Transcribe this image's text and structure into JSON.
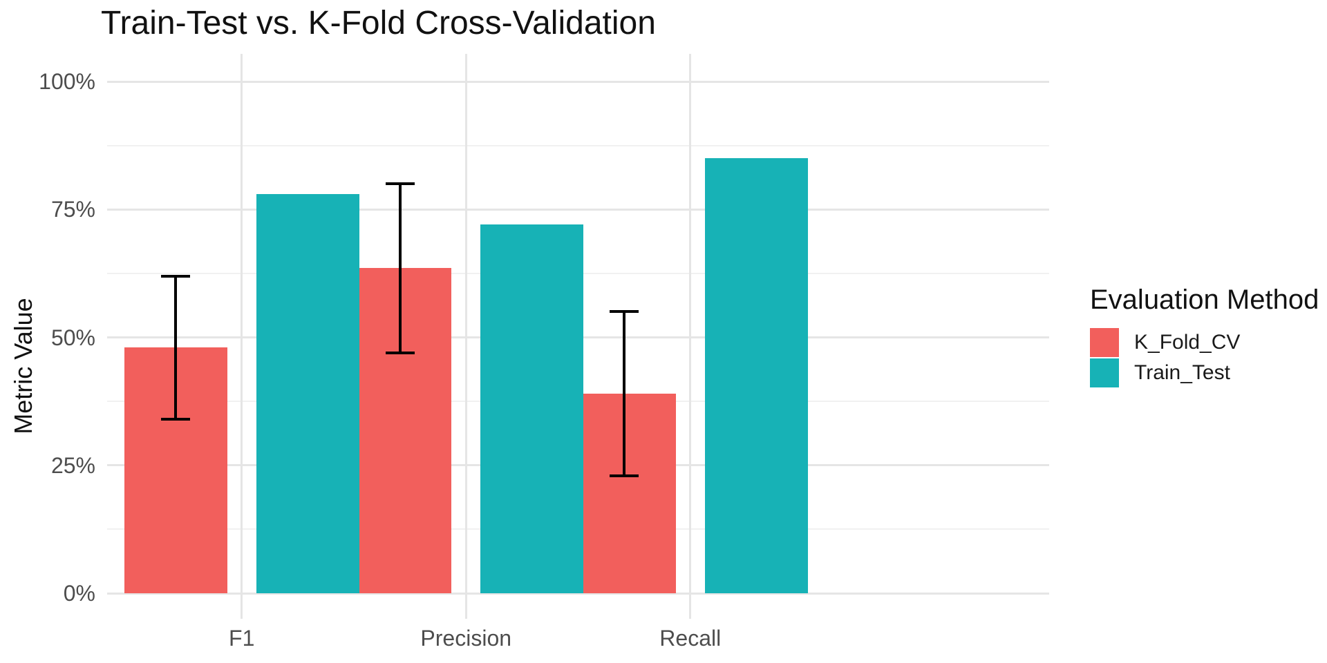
{
  "title": "Train-Test vs. K-Fold Cross-Validation",
  "chart_data": {
    "type": "bar",
    "title": "Train-Test vs. K-Fold Cross-Validation",
    "xlabel": "",
    "ylabel": "Metric Value",
    "categories": [
      "F1",
      "Precision",
      "Recall"
    ],
    "series": [
      {
        "name": "K_Fold_CV",
        "color": "#F25F5C",
        "values": [
          0.48,
          0.635,
          0.39
        ],
        "error_low": [
          0.34,
          0.47,
          0.23
        ],
        "error_high": [
          0.62,
          0.8,
          0.55
        ]
      },
      {
        "name": "Train_Test",
        "color": "#17B2B6",
        "values": [
          0.78,
          0.72,
          0.85
        ],
        "error_low": null,
        "error_high": null
      }
    ],
    "ylim": [
      0,
      1
    ],
    "yticks": {
      "values": [
        0,
        0.25,
        0.5,
        0.75,
        1.0
      ],
      "labels": [
        "0%",
        "25%",
        "50%",
        "75%",
        "100%"
      ]
    },
    "minor_yticks": [
      0.125,
      0.375,
      0.625,
      0.875
    ],
    "grid": {
      "horizontal": "major+minor",
      "vertical": "major-at-category-centers"
    },
    "legend": {
      "title": "Evaluation Method",
      "position": "right"
    },
    "colors": {
      "grid_major": "#e5e5e5",
      "grid_minor": "#f1f1f1",
      "axis_text": "#4d4d4d",
      "error_bar": "#000000",
      "background": "#ffffff"
    }
  }
}
